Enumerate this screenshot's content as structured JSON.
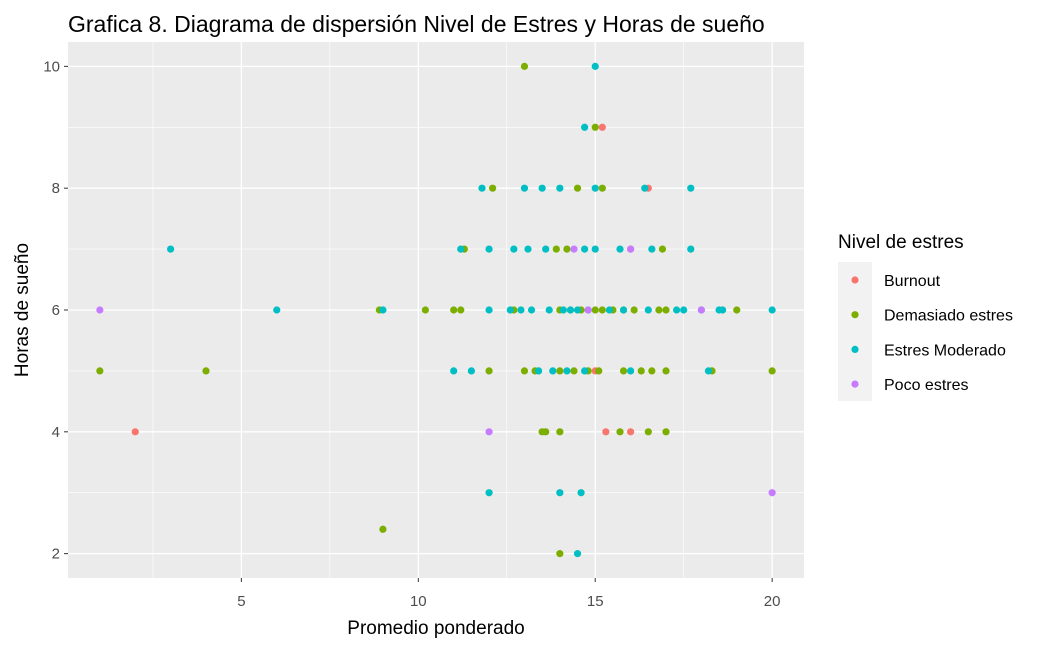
{
  "chart_data": {
    "type": "scatter",
    "title": "Grafica 8. Diagrama de dispersión Nivel de Estres y Horas de sueño",
    "xlabel": "Promedio ponderado",
    "ylabel": "Horas de sueño",
    "xlim": [
      0.1,
      20.9
    ],
    "ylim": [
      1.6,
      10.4
    ],
    "xticks": [
      5,
      10,
      15,
      20
    ],
    "yticks": [
      2,
      4,
      6,
      8,
      10
    ],
    "grid": true,
    "legend": {
      "title": "Nivel de estres",
      "position": "right"
    },
    "series": [
      {
        "name": "Burnout",
        "color": "#F8766D",
        "points": [
          [
            2,
            4
          ],
          [
            15.2,
            9
          ],
          [
            16.5,
            8
          ],
          [
            16,
            7
          ],
          [
            15,
            5
          ],
          [
            15.3,
            4
          ],
          [
            16,
            4
          ]
        ]
      },
      {
        "name": "Demasiado estres",
        "color": "#7CAE00",
        "points": [
          [
            1,
            5
          ],
          [
            4,
            5
          ],
          [
            9,
            2.4
          ],
          [
            8.9,
            6
          ],
          [
            10.2,
            6
          ],
          [
            11,
            6
          ],
          [
            11.2,
            6
          ],
          [
            11.3,
            7
          ],
          [
            12,
            5
          ],
          [
            12.1,
            8
          ],
          [
            12.7,
            6
          ],
          [
            13,
            10
          ],
          [
            13,
            5
          ],
          [
            13.3,
            5
          ],
          [
            13.5,
            4
          ],
          [
            13.6,
            4
          ],
          [
            13.9,
            7
          ],
          [
            14,
            6
          ],
          [
            14,
            5
          ],
          [
            14,
            4
          ],
          [
            14,
            2
          ],
          [
            14.2,
            7
          ],
          [
            14.3,
            6
          ],
          [
            14.4,
            5
          ],
          [
            14.5,
            8
          ],
          [
            14.6,
            6
          ],
          [
            14.8,
            5
          ],
          [
            15,
            9
          ],
          [
            15,
            6
          ],
          [
            15.1,
            5
          ],
          [
            15.2,
            8
          ],
          [
            15.2,
            6
          ],
          [
            15.5,
            6
          ],
          [
            15.7,
            4
          ],
          [
            15.8,
            6
          ],
          [
            15.8,
            5
          ],
          [
            16.1,
            6
          ],
          [
            16.3,
            5
          ],
          [
            16.5,
            4
          ],
          [
            16.6,
            5
          ],
          [
            16.8,
            6
          ],
          [
            16.9,
            7
          ],
          [
            17,
            5
          ],
          [
            17,
            4
          ],
          [
            17,
            6
          ],
          [
            18.3,
            5
          ],
          [
            19,
            6
          ],
          [
            20,
            5
          ]
        ]
      },
      {
        "name": "Estres Moderado",
        "color": "#00BFC4",
        "points": [
          [
            3,
            7
          ],
          [
            6,
            6
          ],
          [
            9,
            6
          ],
          [
            11,
            5
          ],
          [
            11.5,
            5
          ],
          [
            11.2,
            7
          ],
          [
            11.8,
            8
          ],
          [
            12,
            7
          ],
          [
            12,
            6
          ],
          [
            12,
            3
          ],
          [
            12.6,
            6
          ],
          [
            12.7,
            7
          ],
          [
            12.9,
            6
          ],
          [
            13,
            8
          ],
          [
            13.1,
            7
          ],
          [
            13.2,
            6
          ],
          [
            13.4,
            5
          ],
          [
            13.5,
            8
          ],
          [
            13.6,
            7
          ],
          [
            13.7,
            6
          ],
          [
            13.8,
            5
          ],
          [
            14,
            8
          ],
          [
            14,
            3
          ],
          [
            14.1,
            6
          ],
          [
            14.2,
            5
          ],
          [
            14.3,
            6
          ],
          [
            14.5,
            6
          ],
          [
            14.5,
            2
          ],
          [
            14.6,
            3
          ],
          [
            14.7,
            9
          ],
          [
            14.7,
            7
          ],
          [
            14.7,
            5
          ],
          [
            14.8,
            6
          ],
          [
            15,
            10
          ],
          [
            15,
            8
          ],
          [
            15,
            7
          ],
          [
            15.4,
            6
          ],
          [
            15.7,
            7
          ],
          [
            15.8,
            6
          ],
          [
            16,
            5
          ],
          [
            16.4,
            8
          ],
          [
            16.5,
            6
          ],
          [
            16.6,
            7
          ],
          [
            17.3,
            6
          ],
          [
            17.5,
            6
          ],
          [
            17.7,
            7
          ],
          [
            17.7,
            8
          ],
          [
            18,
            6
          ],
          [
            18.2,
            5
          ],
          [
            18.5,
            6
          ],
          [
            18.6,
            6
          ],
          [
            20,
            6
          ]
        ]
      },
      {
        "name": "Poco estres",
        "color": "#C77CFF",
        "points": [
          [
            1,
            6
          ],
          [
            12,
            4
          ],
          [
            14.4,
            7
          ],
          [
            14.8,
            6
          ],
          [
            16,
            7
          ],
          [
            18,
            6
          ],
          [
            20,
            3
          ]
        ]
      }
    ]
  }
}
